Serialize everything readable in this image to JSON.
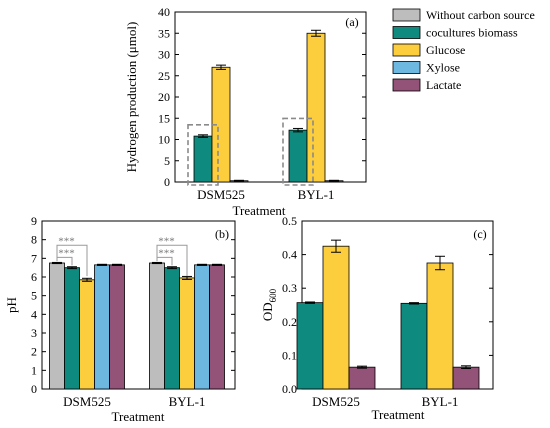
{
  "colors": {
    "Without carbon source": "#bdbdbd",
    "cocultures biomass": "#0f8a7e",
    "Glucose": "#fccd3c",
    "Xylose": "#6cb8e0",
    "Lactate": "#935277",
    "axis": "#000000",
    "significance": "#9a9a9a",
    "highlight_box": "#8a8a8a"
  },
  "legend": {
    "placement": "top-right of panel (a), outside plot area",
    "entries": [
      "Without carbon source",
      "cocultures biomass",
      "Glucose",
      "Xylose",
      "Lactate"
    ]
  },
  "chart_data": [
    {
      "type": "bar",
      "panel_label": "(a)",
      "categories": [
        "DSM525",
        "BYL-1"
      ],
      "xlabel": "Treatment",
      "ylabel": "Hydrogen production (μmol)",
      "ylim": [
        0,
        40
      ],
      "yticks": [
        0,
        5,
        10,
        15,
        20,
        25,
        30,
        35,
        40
      ],
      "ytick_labels": [
        "0",
        "5",
        "10",
        "15",
        "20",
        "25",
        "30",
        "35",
        "40"
      ],
      "series": [
        {
          "name": "cocultures biomass",
          "values": [
            10.8,
            12.2
          ],
          "errors": [
            0.3,
            0.4
          ]
        },
        {
          "name": "Glucose",
          "values": [
            27.0,
            35.0
          ],
          "errors": [
            0.5,
            0.7
          ]
        },
        {
          "name": "Lactate",
          "values": [
            0.3,
            0.3
          ],
          "errors": [
            0.1,
            0.1
          ]
        }
      ],
      "highlight": "dashed box around cocultures biomass bars",
      "grid": false
    },
    {
      "type": "bar",
      "panel_label": "(b)",
      "categories": [
        "DSM525",
        "BYL-1"
      ],
      "xlabel": "Treatment",
      "ylabel": "pH",
      "ylim": [
        0,
        9
      ],
      "yticks": [
        0,
        1,
        2,
        3,
        4,
        5,
        6,
        7,
        8,
        9
      ],
      "ytick_labels": [
        "0",
        "1",
        "2",
        "3",
        "4",
        "5",
        "6",
        "7",
        "8",
        "9"
      ],
      "series": [
        {
          "name": "Without carbon source",
          "values": [
            6.75,
            6.75
          ],
          "errors": [
            0.03,
            0.03
          ]
        },
        {
          "name": "cocultures biomass",
          "values": [
            6.5,
            6.5
          ],
          "errors": [
            0.05,
            0.05
          ]
        },
        {
          "name": "Glucose",
          "values": [
            5.85,
            5.95
          ],
          "errors": [
            0.08,
            0.08
          ]
        },
        {
          "name": "Xylose",
          "values": [
            6.65,
            6.65
          ],
          "errors": [
            0.03,
            0.03
          ]
        },
        {
          "name": "Lactate",
          "values": [
            6.65,
            6.65
          ],
          "errors": [
            0.03,
            0.03
          ]
        }
      ],
      "annotations": [
        "***",
        "***",
        "***",
        "***"
      ],
      "grid": false
    },
    {
      "type": "bar",
      "panel_label": "(c)",
      "categories": [
        "DSM525",
        "BYL-1"
      ],
      "xlabel": "Treatment",
      "ylabel": "OD600",
      "ylabel_main": "OD",
      "ylabel_sub": "600",
      "ylim": [
        0,
        0.5
      ],
      "yticks": [
        0,
        0.1,
        0.2,
        0.3,
        0.4,
        0.5
      ],
      "ytick_labels": [
        "0.0",
        "0.1",
        "0.2",
        "0.3",
        "0.4",
        "0.5"
      ],
      "series": [
        {
          "name": "cocultures biomass",
          "values": [
            0.257,
            0.255
          ],
          "errors": [
            0.002,
            0.002
          ]
        },
        {
          "name": "Glucose",
          "values": [
            0.425,
            0.375
          ],
          "errors": [
            0.018,
            0.02
          ]
        },
        {
          "name": "Lactate",
          "values": [
            0.065,
            0.065
          ],
          "errors": [
            0.003,
            0.004
          ]
        }
      ],
      "grid": false
    }
  ]
}
